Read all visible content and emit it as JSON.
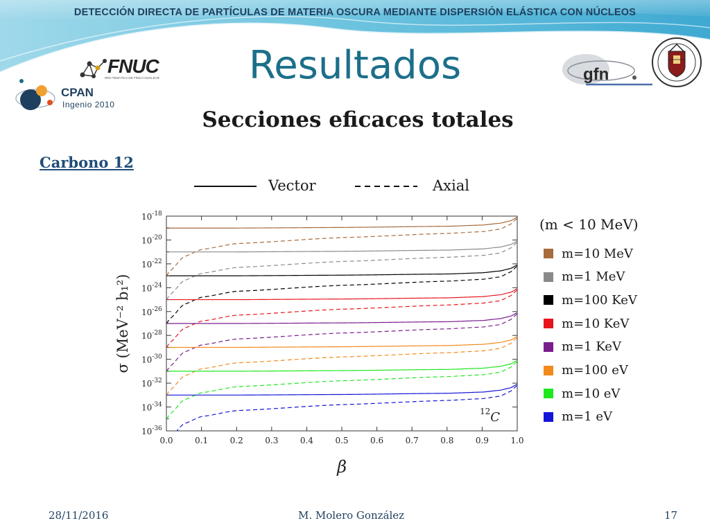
{
  "header": {
    "top_title": "DETECCIÓN DIRECTA DE PARTÍCULAS DE MATERIA OSCURA MEDIANTE DISPERSIÓN ELÁSTICA CON NÚCLEOS",
    "slide_title": "Resultados",
    "subtitle": "Secciones eficaces totales",
    "section_label": "Carbono 12"
  },
  "logos": {
    "fnuc": "FNUC",
    "fnuc_sub": "RED TEMÁTICA DE FÍSICA NUCLEAR",
    "cpan": "CPAN",
    "cpan_sub": "Ingenio 2010",
    "gfn": "gfn"
  },
  "legend_styles": {
    "vector_label": "Vector",
    "axial_label": "Axial"
  },
  "mass_range": "(m < 10 MeV)",
  "colors": {
    "m10MeV": "#a86b3c",
    "m1MeV": "#8a8a8a",
    "m100KeV": "#000000",
    "m10KeV": "#e8141c",
    "m1KeV": "#7a1e8c",
    "m100eV": "#f28a1c",
    "m10eV": "#1ee81e",
    "m1eV": "#1414d8",
    "title_teal": "#1c6f8a",
    "navy": "#1f3f5e"
  },
  "chart_data": {
    "type": "line",
    "title": "",
    "xlabel": "β",
    "ylabel": "σ (MeV⁻² b₁²)",
    "xlim": [
      0.0,
      1.0
    ],
    "ylim_log10": [
      -36,
      -18
    ],
    "y_scale": "log",
    "x_ticks": [
      "0.0",
      "0.1",
      "0.2",
      "0.3",
      "0.4",
      "0.5",
      "0.6",
      "0.7",
      "0.8",
      "0.9",
      "1.0"
    ],
    "y_tick_exponents": [
      "-18",
      "-20",
      "-22",
      "-24",
      "-26",
      "-28",
      "-30",
      "-32",
      "-34",
      "-36"
    ],
    "y_tick_base": "10",
    "annotation": {
      "sup": "12",
      "main": "C"
    },
    "line_styles": {
      "Vector": "solid",
      "Axial": "dashed"
    },
    "series": [
      {
        "name": "m=10 MeV",
        "color_key": "m10MeV",
        "vector": {
          "x": [
            0.0,
            0.2,
            0.5,
            0.8,
            0.9,
            0.95,
            0.98,
            1.0
          ],
          "log10_sigma": [
            -19.0,
            -19.0,
            -18.95,
            -18.85,
            -18.75,
            -18.6,
            -18.4,
            -18.1
          ]
        },
        "axial": {
          "x": [
            0.0,
            0.01,
            0.05,
            0.1,
            0.2,
            0.5,
            0.8,
            0.9,
            0.95,
            0.98,
            1.0
          ],
          "log10_sigma": [
            -23.0,
            -22.6,
            -21.4,
            -20.8,
            -20.3,
            -19.8,
            -19.45,
            -19.3,
            -19.1,
            -18.7,
            -18.2
          ]
        }
      },
      {
        "name": "m=1 MeV",
        "color_key": "m1MeV",
        "vector": {
          "x": [
            0.0,
            0.2,
            0.5,
            0.8,
            0.9,
            0.95,
            0.98,
            1.0
          ],
          "log10_sigma": [
            -21.0,
            -21.0,
            -20.95,
            -20.85,
            -20.75,
            -20.6,
            -20.4,
            -20.1
          ]
        },
        "axial": {
          "x": [
            0.0,
            0.01,
            0.05,
            0.1,
            0.2,
            0.5,
            0.8,
            0.9,
            0.95,
            0.98,
            1.0
          ],
          "log10_sigma": [
            -25.0,
            -24.6,
            -23.4,
            -22.8,
            -22.3,
            -21.8,
            -21.45,
            -21.3,
            -21.1,
            -20.7,
            -20.2
          ]
        }
      },
      {
        "name": "m=100 KeV",
        "color_key": "m100KeV",
        "vector": {
          "x": [
            0.0,
            0.2,
            0.5,
            0.8,
            0.9,
            0.95,
            0.98,
            1.0
          ],
          "log10_sigma": [
            -23.0,
            -23.0,
            -22.95,
            -22.85,
            -22.75,
            -22.6,
            -22.4,
            -22.1
          ]
        },
        "axial": {
          "x": [
            0.0,
            0.01,
            0.05,
            0.1,
            0.2,
            0.5,
            0.8,
            0.9,
            0.95,
            0.98,
            1.0
          ],
          "log10_sigma": [
            -27.0,
            -26.6,
            -25.4,
            -24.8,
            -24.3,
            -23.8,
            -23.45,
            -23.3,
            -23.1,
            -22.7,
            -22.2
          ]
        }
      },
      {
        "name": "m=10 KeV",
        "color_key": "m10KeV",
        "vector": {
          "x": [
            0.0,
            0.2,
            0.5,
            0.8,
            0.9,
            0.95,
            0.98,
            1.0
          ],
          "log10_sigma": [
            -25.0,
            -25.0,
            -24.95,
            -24.85,
            -24.75,
            -24.6,
            -24.4,
            -24.1
          ]
        },
        "axial": {
          "x": [
            0.0,
            0.01,
            0.05,
            0.1,
            0.2,
            0.5,
            0.8,
            0.9,
            0.95,
            0.98,
            1.0
          ],
          "log10_sigma": [
            -29.0,
            -28.6,
            -27.4,
            -26.8,
            -26.3,
            -25.8,
            -25.45,
            -25.3,
            -25.1,
            -24.7,
            -24.2
          ]
        }
      },
      {
        "name": "m=1 KeV",
        "color_key": "m1KeV",
        "vector": {
          "x": [
            0.0,
            0.2,
            0.5,
            0.8,
            0.9,
            0.95,
            0.98,
            1.0
          ],
          "log10_sigma": [
            -27.0,
            -27.0,
            -26.95,
            -26.85,
            -26.75,
            -26.6,
            -26.4,
            -26.1
          ]
        },
        "axial": {
          "x": [
            0.0,
            0.01,
            0.05,
            0.1,
            0.2,
            0.5,
            0.8,
            0.9,
            0.95,
            0.98,
            1.0
          ],
          "log10_sigma": [
            -31.0,
            -30.6,
            -29.4,
            -28.8,
            -28.3,
            -27.8,
            -27.45,
            -27.3,
            -27.1,
            -26.7,
            -26.2
          ]
        }
      },
      {
        "name": "m=100 eV",
        "color_key": "m100eV",
        "vector": {
          "x": [
            0.0,
            0.2,
            0.5,
            0.8,
            0.9,
            0.95,
            0.98,
            1.0
          ],
          "log10_sigma": [
            -29.0,
            -29.0,
            -28.95,
            -28.85,
            -28.75,
            -28.6,
            -28.4,
            -28.1
          ]
        },
        "axial": {
          "x": [
            0.0,
            0.01,
            0.05,
            0.1,
            0.2,
            0.5,
            0.8,
            0.9,
            0.95,
            0.98,
            1.0
          ],
          "log10_sigma": [
            -33.0,
            -32.6,
            -31.4,
            -30.8,
            -30.3,
            -29.8,
            -29.45,
            -29.3,
            -29.1,
            -28.7,
            -28.2
          ]
        }
      },
      {
        "name": "m=10 eV",
        "color_key": "m10eV",
        "vector": {
          "x": [
            0.0,
            0.2,
            0.5,
            0.8,
            0.9,
            0.95,
            0.98,
            1.0
          ],
          "log10_sigma": [
            -31.0,
            -31.0,
            -30.95,
            -30.85,
            -30.75,
            -30.6,
            -30.4,
            -30.1
          ]
        },
        "axial": {
          "x": [
            0.0,
            0.01,
            0.05,
            0.1,
            0.2,
            0.5,
            0.8,
            0.9,
            0.95,
            0.98,
            1.0
          ],
          "log10_sigma": [
            -35.0,
            -34.6,
            -33.4,
            -32.8,
            -32.3,
            -31.8,
            -31.45,
            -31.3,
            -31.1,
            -30.7,
            -30.2
          ]
        }
      },
      {
        "name": "m=1 eV",
        "color_key": "m1eV",
        "vector": {
          "x": [
            0.0,
            0.2,
            0.5,
            0.8,
            0.9,
            0.95,
            0.98,
            1.0
          ],
          "log10_sigma": [
            -33.0,
            -33.0,
            -32.95,
            -32.85,
            -32.75,
            -32.6,
            -32.4,
            -32.1
          ]
        },
        "axial": {
          "x": [
            0.0,
            0.01,
            0.05,
            0.1,
            0.2,
            0.5,
            0.8,
            0.9,
            0.95,
            0.98,
            1.0
          ],
          "log10_sigma": [
            -37.0,
            -36.6,
            -35.4,
            -34.8,
            -34.3,
            -33.8,
            -33.45,
            -33.3,
            -33.1,
            -32.7,
            -32.2
          ]
        }
      }
    ]
  },
  "footer": {
    "date": "28/11/2016",
    "author": "M. Molero González",
    "page": "17"
  }
}
